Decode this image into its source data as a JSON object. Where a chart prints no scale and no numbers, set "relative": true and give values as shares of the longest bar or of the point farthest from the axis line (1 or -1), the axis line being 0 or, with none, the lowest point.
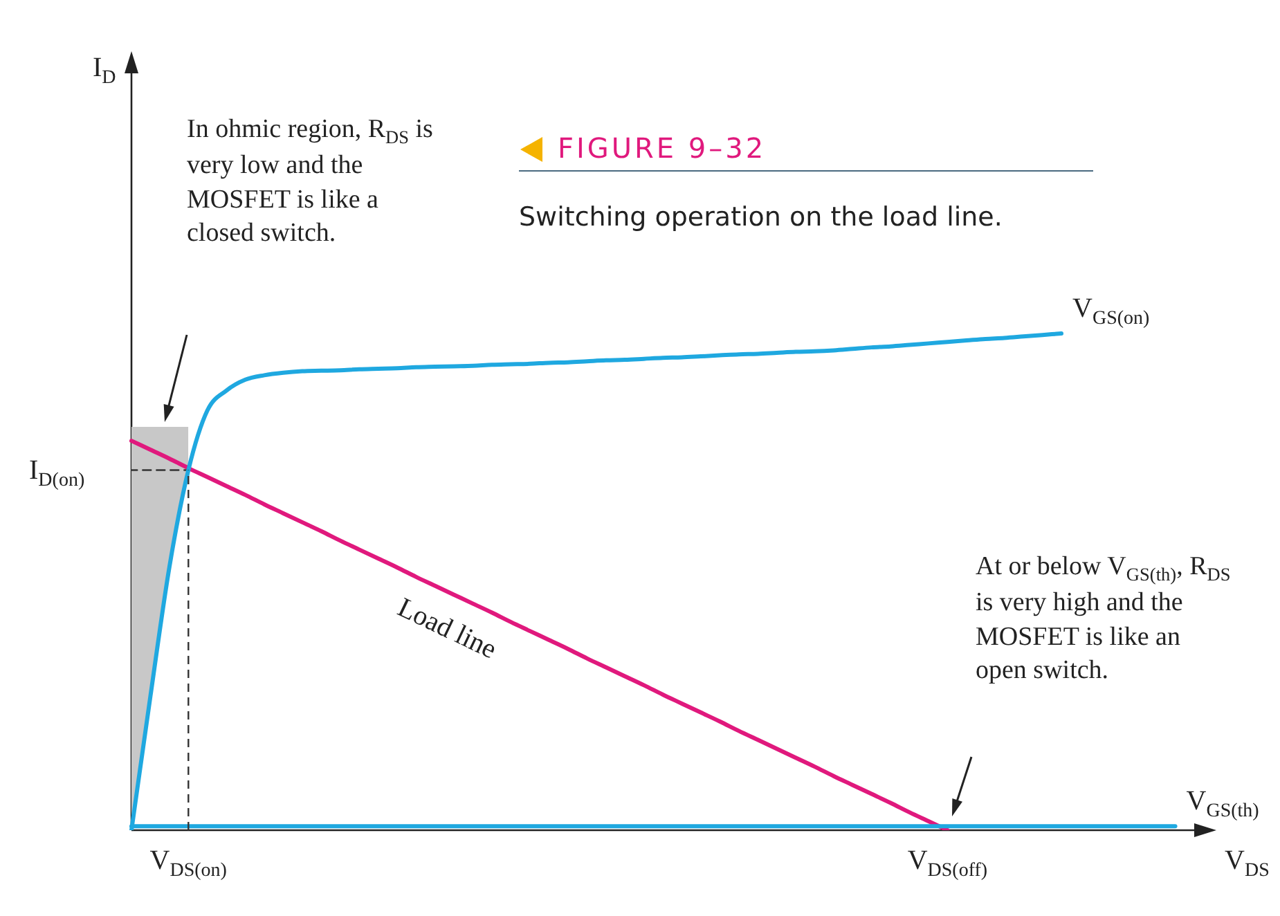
{
  "chart_data": {
    "type": "line",
    "title": "FIGURE 9–32",
    "subtitle": "Switching operation on the load line.",
    "xlabel": "V$_{DS}$",
    "relative": true,
    "marker": "none",
    "legend": false,
    "categories": [
      null,
      null,
      null,
      "V$_{DS(on)}$",
      null,
      null,
      null,
      null,
      null,
      null,
      null,
      null,
      null,
      null,
      null,
      null,
      null,
      null,
      null,
      null,
      null,
      null,
      null,
      null,
      null,
      null,
      null,
      null,
      null,
      null,
      null,
      null,
      null,
      null,
      null,
      null,
      null,
      null,
      null,
      null,
      null,
      null,
      null,
      "V$_{DS(off)}$",
      null,
      null,
      null,
      null,
      null,
      null,
      null,
      null,
      null,
      null,
      null,
      null,
      null
    ],
    "series": [
      {
        "name": "V$_{GS(on)}$",
        "color": "#1fa8e0",
        "values": [
          0,
          0.27,
          0.53,
          0.725,
          0.845,
          0.885,
          0.907,
          0.916,
          0.921,
          0.924,
          0.925,
          0.926,
          0.928,
          0.929,
          0.93,
          0.932,
          0.933,
          0.934,
          0.935,
          0.937,
          0.938,
          0.939,
          0.941,
          0.942,
          0.944,
          0.946,
          0.947,
          0.949,
          0.951,
          0.952,
          0.954,
          0.956,
          0.958,
          0.959,
          0.961,
          0.963,
          0.964,
          0.966,
          0.969,
          0.972,
          0.974,
          0.977,
          0.98,
          0.983,
          0.986,
          0.989,
          0.991,
          0.994,
          0.997,
          1,
          null,
          null,
          null,
          null,
          null,
          null,
          null
        ],
        "lower": [
          0,
          0.27,
          0.53,
          0.725,
          null,
          null,
          null,
          null,
          null,
          null,
          null,
          null,
          null,
          null,
          null,
          null,
          null,
          null,
          null,
          null,
          null,
          null,
          null,
          null,
          null,
          null,
          null,
          null,
          null,
          null,
          null,
          null,
          null,
          null,
          null,
          null,
          null,
          null,
          null,
          null,
          null,
          null,
          null,
          null,
          null,
          null,
          null,
          null,
          null,
          null,
          null,
          null,
          null,
          null,
          null,
          null,
          null
        ],
        "upper": [
          0.812,
          0.812,
          0.812,
          0.812,
          null,
          null,
          null,
          null,
          null,
          null,
          null,
          null,
          null,
          null,
          null,
          null,
          null,
          null,
          null,
          null,
          null,
          null,
          null,
          null,
          null,
          null,
          null,
          null,
          null,
          null,
          null,
          null,
          null,
          null,
          null,
          null,
          null,
          null,
          null,
          null,
          null,
          null,
          null,
          null,
          null,
          null,
          null,
          null,
          null,
          null,
          null,
          null,
          null,
          null,
          null,
          null,
          null
        ]
      },
      {
        "name": "V$_{GS(th)}$",
        "color": "#1fa8e0",
        "values": [
          0.008,
          0.008,
          0.008,
          0.008,
          0.008,
          0.008,
          0.008,
          0.008,
          0.008,
          0.008,
          0.008,
          0.008,
          0.008,
          0.008,
          0.008,
          0.008,
          0.008,
          0.008,
          0.008,
          0.008,
          0.008,
          0.008,
          0.008,
          0.008,
          0.008,
          0.008,
          0.008,
          0.008,
          0.008,
          0.008,
          0.008,
          0.008,
          0.008,
          0.008,
          0.008,
          0.008,
          0.008,
          0.008,
          0.008,
          0.008,
          0.008,
          0.008,
          0.008,
          0.008,
          0.008,
          0.008,
          0.008,
          0.008,
          0.008,
          0.008,
          0.008,
          0.008,
          0.008,
          0.008,
          0.008,
          0.008,
          null
        ]
      },
      {
        "color": "#333333",
        "line_style": "dashed",
        "values": [
          0.725,
          0.725,
          0.725,
          0.725,
          null,
          null,
          null,
          null,
          null,
          null,
          null,
          null,
          null,
          null,
          null,
          null,
          null,
          null,
          null,
          null,
          null,
          null,
          null,
          null,
          null,
          null,
          null,
          null,
          null,
          null,
          null,
          null,
          null,
          null,
          null,
          null,
          null,
          null,
          null,
          null,
          null,
          null,
          null,
          null,
          null,
          null,
          null,
          null,
          null,
          null,
          null,
          null,
          null,
          null,
          null,
          null,
          null
        ]
      },
      {
        "name": "Load line",
        "color": "#e0197d",
        "values": [
          0.784,
          0.766,
          0.748,
          0.729,
          0.711,
          0.693,
          0.675,
          0.656,
          0.638,
          0.62,
          0.602,
          0.583,
          0.565,
          0.547,
          0.529,
          0.51,
          0.492,
          0.474,
          0.456,
          0.438,
          0.419,
          0.401,
          0.383,
          0.365,
          0.346,
          0.328,
          0.31,
          0.292,
          0.273,
          0.255,
          0.237,
          0.219,
          0.2,
          0.182,
          0.164,
          0.146,
          0.128,
          0.109,
          0.091,
          0.073,
          0.055,
          0.036,
          0.018,
          0,
          null,
          null,
          null,
          null,
          null,
          null,
          null,
          null,
          null,
          null,
          null,
          null,
          null
        ]
      }
    ],
    "ref_lines": [
      {
        "axis": "x",
        "value": "V$_{DS(on)}$",
        "line_style": "dashed",
        "color": "#333333"
      }
    ],
    "annotations": [
      "In ohmic region, R$_{DS}$ is very low and the MOSFET is like a closed switch.",
      "At or below V$_{GS(th)}$, R$_{DS}$ is very high and the MOSFET is like an open switch.",
      "I$_{D}$",
      "I$_{D(on)}$"
    ]
  }
}
